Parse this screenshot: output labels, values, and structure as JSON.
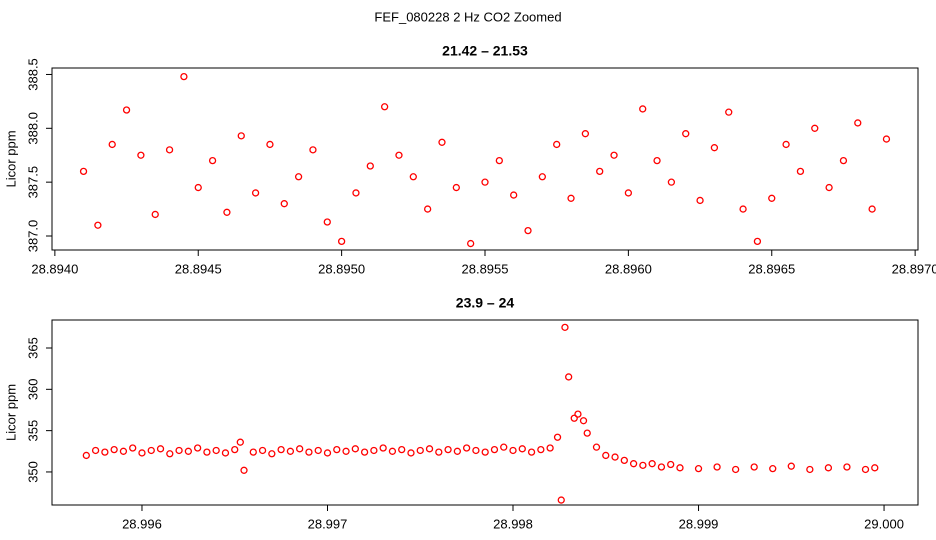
{
  "title": "FEF_080228  2 Hz CO2 Zoomed",
  "chart_data": [
    {
      "type": "scatter",
      "title": "21.42 – 21.53",
      "y_label": "Licor ppm",
      "color": "#ff0000",
      "xlim": [
        28.89399,
        28.89701
      ],
      "ylim": [
        386.87,
        388.56
      ],
      "xticks": [
        {
          "value": 28.894,
          "label": "28.8940"
        },
        {
          "value": 28.8945,
          "label": "28.8945"
        },
        {
          "value": 28.895,
          "label": "28.8950"
        },
        {
          "value": 28.8955,
          "label": "28.8955"
        },
        {
          "value": 28.896,
          "label": "28.8960"
        },
        {
          "value": 28.8965,
          "label": "28.8965"
        },
        {
          "value": 28.897,
          "label": "28.8970"
        }
      ],
      "yticks": [
        {
          "value": 387,
          "label": "387.0"
        },
        387.5,
        {
          "value": 388,
          "label": "388.0"
        },
        388.5
      ],
      "x": [
        28.8941,
        28.89415,
        28.8942,
        28.89425,
        28.8943,
        28.89435,
        28.8944,
        28.89445,
        28.8945,
        28.89455,
        28.8946,
        28.89465,
        28.8947,
        28.89475,
        28.8948,
        28.89485,
        28.8949,
        28.89495,
        28.895,
        28.89505,
        28.8951,
        28.89515,
        28.8952,
        28.89525,
        28.8953,
        28.89535,
        28.8954,
        28.89545,
        28.8955,
        28.89555,
        28.8956,
        28.89565,
        28.8957,
        28.89575,
        28.8958,
        28.89585,
        28.8959,
        28.89595,
        28.896,
        28.89605,
        28.8961,
        28.89615,
        28.8962,
        28.89625,
        28.8963,
        28.89635,
        28.8964,
        28.89645,
        28.8965,
        28.89655,
        28.8966,
        28.89665,
        28.8967,
        28.89675,
        28.8968,
        28.89685,
        28.8969
      ],
      "values": [
        387.6,
        387.1,
        387.85,
        388.17,
        387.75,
        387.2,
        387.8,
        388.48,
        387.45,
        387.7,
        387.22,
        387.93,
        387.4,
        387.85,
        387.3,
        387.55,
        387.8,
        387.13,
        386.95,
        387.4,
        387.65,
        388.2,
        387.75,
        387.55,
        387.25,
        387.87,
        387.45,
        386.93,
        387.5,
        387.7,
        387.38,
        387.05,
        387.55,
        387.85,
        387.35,
        387.95,
        387.6,
        387.75,
        387.4,
        388.18,
        387.7,
        387.5,
        387.95,
        387.33,
        387.82,
        388.15,
        387.25,
        386.95,
        387.35,
        387.85,
        387.6,
        388.0,
        387.45,
        387.7,
        388.05,
        387.25,
        387.9
      ]
    },
    {
      "type": "scatter",
      "title": "23.9 – 24",
      "y_label": "Licor ppm",
      "color": "#ff0000",
      "xlim": [
        28.995515,
        29.000183
      ],
      "ylim": [
        346.0,
        368.39
      ],
      "xticks": [
        28.996,
        28.997,
        28.998,
        28.999,
        {
          "value": 29,
          "label": "29.000"
        }
      ],
      "yticks": [
        350,
        355,
        360,
        365
      ],
      "x": [
        28.9957,
        28.99575,
        28.9958,
        28.99585,
        28.9959,
        28.99595,
        28.996,
        28.99605,
        28.9961,
        28.99615,
        28.9962,
        28.99625,
        28.9963,
        28.99635,
        28.9964,
        28.99645,
        28.9965,
        28.99653,
        28.99655,
        28.9966,
        28.99665,
        28.9967,
        28.99675,
        28.9968,
        28.99685,
        28.9969,
        28.99695,
        28.997,
        28.99705,
        28.9971,
        28.99715,
        28.9972,
        28.99725,
        28.9973,
        28.99735,
        28.9974,
        28.99745,
        28.9975,
        28.99755,
        28.9976,
        28.99765,
        28.9977,
        28.99775,
        28.9978,
        28.99785,
        28.9979,
        28.99795,
        28.998,
        28.99805,
        28.9981,
        28.99815,
        28.9982,
        28.99824,
        28.99826,
        28.99828,
        28.9983,
        28.99833,
        28.99835,
        28.99838,
        28.9984,
        28.99845,
        28.9985,
        28.99855,
        28.9986,
        28.99865,
        28.9987,
        28.99875,
        28.9988,
        28.99885,
        28.9989,
        28.999,
        28.9991,
        28.9992,
        28.9993,
        28.9994,
        28.9995,
        28.9996,
        28.9997,
        28.9998,
        28.9999,
        28.99995
      ],
      "values": [
        352.0,
        352.6,
        352.4,
        352.7,
        352.5,
        352.9,
        352.3,
        352.6,
        352.8,
        352.2,
        352.6,
        352.5,
        352.9,
        352.4,
        352.6,
        352.3,
        352.7,
        353.6,
        350.2,
        352.4,
        352.6,
        352.2,
        352.7,
        352.5,
        352.8,
        352.4,
        352.6,
        352.3,
        352.7,
        352.5,
        352.8,
        352.4,
        352.6,
        352.9,
        352.5,
        352.7,
        352.3,
        352.6,
        352.8,
        352.4,
        352.7,
        352.5,
        352.9,
        352.6,
        352.4,
        352.7,
        353.0,
        352.6,
        352.8,
        352.4,
        352.7,
        352.9,
        354.2,
        346.6,
        367.5,
        361.5,
        356.5,
        357.0,
        356.2,
        354.7,
        353.0,
        352.0,
        351.8,
        351.4,
        351.0,
        350.8,
        351.0,
        350.6,
        350.9,
        350.5,
        350.4,
        350.6,
        350.3,
        350.6,
        350.4,
        350.7,
        350.3,
        350.5,
        350.6,
        350.3,
        350.5
      ]
    }
  ]
}
